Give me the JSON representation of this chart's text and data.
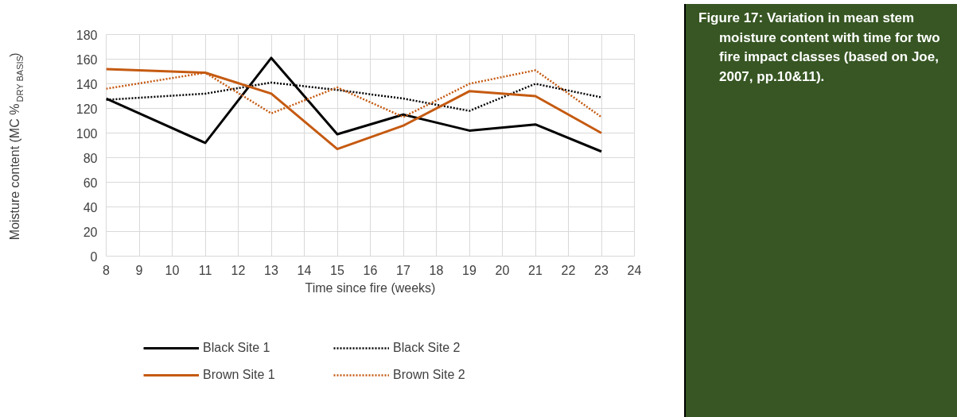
{
  "chart_data": {
    "type": "line",
    "xlabel": "Time since fire (weeks)",
    "ylabel": "Moisture content (MC %$_{DRY BASIS}$)",
    "x": [
      8,
      11,
      13,
      15,
      17,
      19,
      21,
      23
    ],
    "xlim": [
      8,
      24
    ],
    "xticks": [
      8,
      9,
      10,
      11,
      12,
      13,
      14,
      15,
      16,
      17,
      18,
      19,
      20,
      21,
      22,
      23,
      24
    ],
    "ylim": [
      0,
      180
    ],
    "yticks": [
      0,
      20,
      40,
      60,
      80,
      100,
      120,
      140,
      160,
      180
    ],
    "grid": true,
    "legend": "bottom",
    "marker": "none",
    "series": [
      {
        "name": "Black Site 1",
        "color": "#000000",
        "line_style": "solid",
        "values": [
          128,
          92,
          161,
          99,
          115,
          102,
          107,
          85
        ]
      },
      {
        "name": "Black Site 2",
        "color": "#000000",
        "line_style": "dotted",
        "values": [
          127,
          132,
          141,
          135,
          128,
          118,
          140,
          129
        ]
      },
      {
        "name": "Brown Site 1",
        "color": "#c55a11",
        "line_style": "solid",
        "values": [
          152,
          149,
          132,
          87,
          106,
          134,
          130,
          100
        ]
      },
      {
        "name": "Brown Site 2",
        "color": "#c55a11",
        "line_style": "dotted",
        "values": [
          136,
          149,
          116,
          137,
          113,
          140,
          151,
          113
        ]
      }
    ],
    "annotations": [
      "Figure 17: Variation in mean stem moisture content with time for two fire impact classes (based on Joe, 2007, pp.10&11)."
    ]
  }
}
